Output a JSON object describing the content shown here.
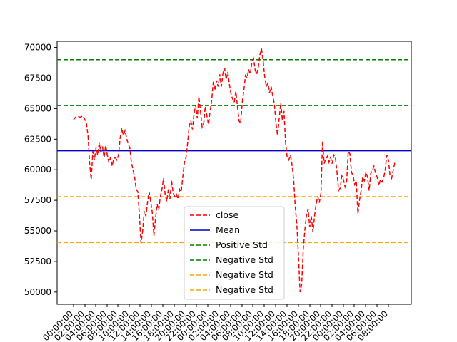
{
  "chart_data": {
    "type": "line",
    "ylim": [
      49000,
      70500
    ],
    "y_ticks": [
      50000,
      52500,
      55000,
      57500,
      60000,
      62500,
      65000,
      67500,
      70000
    ],
    "y_tick_labels": [
      "50000",
      "52500",
      "55000",
      "57500",
      "60000",
      "62500",
      "65000",
      "67500",
      "70000"
    ],
    "x_tick_labels": [
      "00:00:00",
      "02:00:00",
      "04:00:00",
      "06:00:00",
      "08:00:00",
      "10:00:00",
      "12:00:00",
      "14:00:00",
      "16:00:00",
      "18:00:00",
      "20:00:00",
      "22:00:00",
      "00:00:00",
      "02:00:00",
      "04:00:00",
      "06:00:00",
      "08:00:00",
      "10:00:00",
      "12:00:00",
      "14:00:00",
      "16:00:00",
      "18:00:00",
      "20:00:00",
      "22:00:00",
      "00:00:00",
      "02:00:00",
      "04:00:00",
      "06:00:00",
      "08:00:00"
    ],
    "x_tick_positions": [
      103,
      119,
      134,
      150,
      165,
      181,
      196,
      212,
      228,
      244,
      260,
      275,
      291,
      307,
      323,
      339,
      354,
      370,
      386,
      402,
      418,
      434,
      449,
      465,
      481,
      496,
      512,
      528,
      544
    ],
    "series_close": {
      "name": "close",
      "color": "#ff0000",
      "points": [
        [
          0,
          64100
        ],
        [
          0.01,
          64400
        ],
        [
          0.02,
          64300
        ],
        [
          0.03,
          64400
        ],
        [
          0.04,
          63800
        ],
        [
          0.045,
          62800
        ],
        [
          0.05,
          60500
        ],
        [
          0.055,
          59200
        ],
        [
          0.06,
          61500
        ],
        [
          0.065,
          60800
        ],
        [
          0.07,
          61800
        ],
        [
          0.075,
          61200
        ],
        [
          0.08,
          62200
        ],
        [
          0.085,
          61400
        ],
        [
          0.09,
          61900
        ],
        [
          0.095,
          61000
        ],
        [
          0.1,
          62000
        ],
        [
          0.105,
          61200
        ],
        [
          0.11,
          60600
        ],
        [
          0.115,
          61000
        ],
        [
          0.12,
          60300
        ],
        [
          0.125,
          60900
        ],
        [
          0.13,
          61000
        ],
        [
          0.135,
          60800
        ],
        [
          0.14,
          61200
        ],
        [
          0.145,
          62600
        ],
        [
          0.15,
          63400
        ],
        [
          0.155,
          62800
        ],
        [
          0.16,
          63200
        ],
        [
          0.165,
          62600
        ],
        [
          0.17,
          62100
        ],
        [
          0.175,
          61800
        ],
        [
          0.18,
          60600
        ],
        [
          0.185,
          60000
        ],
        [
          0.19,
          59400
        ],
        [
          0.195,
          58400
        ],
        [
          0.2,
          58200
        ],
        [
          0.205,
          56200
        ],
        [
          0.21,
          54000
        ],
        [
          0.215,
          55000
        ],
        [
          0.22,
          56600
        ],
        [
          0.225,
          56200
        ],
        [
          0.23,
          57300
        ],
        [
          0.235,
          58200
        ],
        [
          0.24,
          57400
        ],
        [
          0.245,
          56500
        ],
        [
          0.25,
          54600
        ],
        [
          0.255,
          56000
        ],
        [
          0.26,
          57200
        ],
        [
          0.265,
          56700
        ],
        [
          0.27,
          57800
        ],
        [
          0.275,
          58400
        ],
        [
          0.28,
          59300
        ],
        [
          0.285,
          58000
        ],
        [
          0.29,
          57400
        ],
        [
          0.295,
          58400
        ],
        [
          0.3,
          57600
        ],
        [
          0.305,
          59100
        ],
        [
          0.31,
          58100
        ],
        [
          0.315,
          57800
        ],
        [
          0.32,
          58000
        ],
        [
          0.325,
          57600
        ],
        [
          0.33,
          58400
        ],
        [
          0.335,
          58200
        ],
        [
          0.34,
          59400
        ],
        [
          0.345,
          60600
        ],
        [
          0.35,
          61000
        ],
        [
          0.355,
          62200
        ],
        [
          0.36,
          63600
        ],
        [
          0.365,
          64000
        ],
        [
          0.37,
          63300
        ],
        [
          0.375,
          64600
        ],
        [
          0.38,
          65300
        ],
        [
          0.385,
          64200
        ],
        [
          0.39,
          66000
        ],
        [
          0.395,
          64800
        ],
        [
          0.4,
          63500
        ],
        [
          0.405,
          63800
        ],
        [
          0.41,
          65200
        ],
        [
          0.415,
          64400
        ],
        [
          0.42,
          63700
        ],
        [
          0.425,
          64800
        ],
        [
          0.43,
          65700
        ],
        [
          0.435,
          67200
        ],
        [
          0.44,
          66500
        ],
        [
          0.445,
          67300
        ],
        [
          0.45,
          66800
        ],
        [
          0.455,
          67800
        ],
        [
          0.46,
          66800
        ],
        [
          0.465,
          67900
        ],
        [
          0.47,
          68300
        ],
        [
          0.475,
          67400
        ],
        [
          0.48,
          68000
        ],
        [
          0.485,
          67000
        ],
        [
          0.49,
          66200
        ],
        [
          0.495,
          65800
        ],
        [
          0.5,
          65500
        ],
        [
          0.505,
          66400
        ],
        [
          0.51,
          65200
        ],
        [
          0.515,
          64000
        ],
        [
          0.52,
          63800
        ],
        [
          0.525,
          65500
        ],
        [
          0.53,
          66500
        ],
        [
          0.535,
          67700
        ],
        [
          0.54,
          67500
        ],
        [
          0.545,
          68200
        ],
        [
          0.55,
          67800
        ],
        [
          0.555,
          68800
        ],
        [
          0.56,
          69100
        ],
        [
          0.565,
          68200
        ],
        [
          0.57,
          67800
        ],
        [
          0.575,
          68400
        ],
        [
          0.58,
          69400
        ],
        [
          0.585,
          69900
        ],
        [
          0.59,
          68900
        ],
        [
          0.595,
          67600
        ],
        [
          0.6,
          66800
        ],
        [
          0.605,
          67100
        ],
        [
          0.61,
          66300
        ],
        [
          0.615,
          66800
        ],
        [
          0.62,
          66000
        ],
        [
          0.625,
          65400
        ],
        [
          0.63,
          63800
        ],
        [
          0.635,
          62800
        ],
        [
          0.64,
          64200
        ],
        [
          0.645,
          65500
        ],
        [
          0.65,
          64000
        ],
        [
          0.655,
          64800
        ],
        [
          0.66,
          62200
        ],
        [
          0.665,
          61000
        ],
        [
          0.67,
          60800
        ],
        [
          0.675,
          61200
        ],
        [
          0.68,
          60400
        ],
        [
          0.685,
          59200
        ],
        [
          0.69,
          57000
        ],
        [
          0.695,
          55500
        ],
        [
          0.7,
          53000
        ],
        [
          0.705,
          50000
        ],
        [
          0.71,
          50600
        ],
        [
          0.715,
          53500
        ],
        [
          0.72,
          55100
        ],
        [
          0.725,
          56300
        ],
        [
          0.73,
          56800
        ],
        [
          0.735,
          55300
        ],
        [
          0.74,
          56200
        ],
        [
          0.745,
          54900
        ],
        [
          0.75,
          56200
        ],
        [
          0.755,
          57200
        ],
        [
          0.76,
          57800
        ],
        [
          0.765,
          57300
        ],
        [
          0.77,
          58100
        ],
        [
          0.775,
          62300
        ],
        [
          0.78,
          60500
        ],
        [
          0.785,
          60900
        ],
        [
          0.79,
          61100
        ],
        [
          0.795,
          60600
        ],
        [
          0.8,
          61000
        ],
        [
          0.805,
          60500
        ],
        [
          0.81,
          61200
        ],
        [
          0.815,
          61000
        ],
        [
          0.82,
          59800
        ],
        [
          0.825,
          58300
        ],
        [
          0.83,
          58500
        ],
        [
          0.835,
          59500
        ],
        [
          0.84,
          59200
        ],
        [
          0.845,
          58600
        ],
        [
          0.85,
          59000
        ],
        [
          0.855,
          61500
        ],
        [
          0.86,
          61300
        ],
        [
          0.865,
          59800
        ],
        [
          0.87,
          59500
        ],
        [
          0.875,
          58800
        ],
        [
          0.88,
          59100
        ],
        [
          0.885,
          56400
        ],
        [
          0.89,
          57500
        ],
        [
          0.895,
          58300
        ],
        [
          0.9,
          59400
        ],
        [
          0.905,
          59100
        ],
        [
          0.91,
          59800
        ],
        [
          0.915,
          59400
        ],
        [
          0.92,
          58300
        ],
        [
          0.925,
          59700
        ],
        [
          0.93,
          59900
        ],
        [
          0.935,
          60300
        ],
        [
          0.94,
          59700
        ],
        [
          0.945,
          59400
        ],
        [
          0.95,
          58700
        ],
        [
          0.955,
          59200
        ],
        [
          0.96,
          59000
        ],
        [
          0.965,
          59300
        ],
        [
          0.97,
          60000
        ],
        [
          0.975,
          61200
        ],
        [
          0.98,
          60800
        ],
        [
          0.985,
          59500
        ],
        [
          0.99,
          59300
        ],
        [
          1,
          60600
        ]
      ]
    },
    "mean": 61550,
    "positive_std_levels": [
      69000,
      65250
    ],
    "negative_std_levels": [
      57800,
      54050
    ],
    "legend": [
      "close",
      "Mean",
      "Positive Std",
      "Negative Std",
      "Negative Std",
      "Negative Std"
    ],
    "legend_position": "bottom-center",
    "colors": {
      "close": "#ff0000",
      "mean": "#0000cc",
      "positive": "#008000",
      "negative": "#ffa500"
    }
  }
}
